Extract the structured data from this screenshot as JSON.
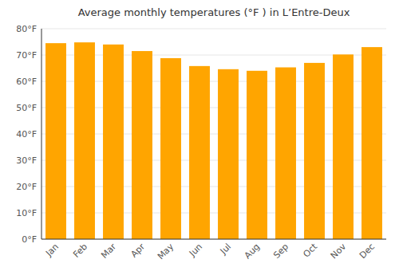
{
  "chart_data": {
    "type": "bar",
    "title": "Average monthly temperatures (°F ) in L’Entre-Deux",
    "categories": [
      "Jan",
      "Feb",
      "Mar",
      "Apr",
      "May",
      "Jun",
      "Jul",
      "Aug",
      "Sep",
      "Oct",
      "Nov",
      "Dec"
    ],
    "values": [
      74.5,
      74.8,
      74.0,
      71.5,
      68.8,
      65.8,
      64.6,
      64.0,
      65.3,
      67.0,
      70.2,
      73.0
    ],
    "color": "#FFA500",
    "ylim": [
      0,
      80
    ],
    "yticks": [
      {
        "value": 0,
        "label": "0°F"
      },
      {
        "value": 10,
        "label": "10°F"
      },
      {
        "value": 20,
        "label": "20°F"
      },
      {
        "value": 30,
        "label": "30°F"
      },
      {
        "value": 40,
        "label": "40°F"
      },
      {
        "value": 50,
        "label": "50°F"
      },
      {
        "value": 60,
        "label": "60°F"
      },
      {
        "value": 70,
        "label": "70°F"
      },
      {
        "value": 80,
        "label": "80°F"
      }
    ],
    "grid": true
  }
}
